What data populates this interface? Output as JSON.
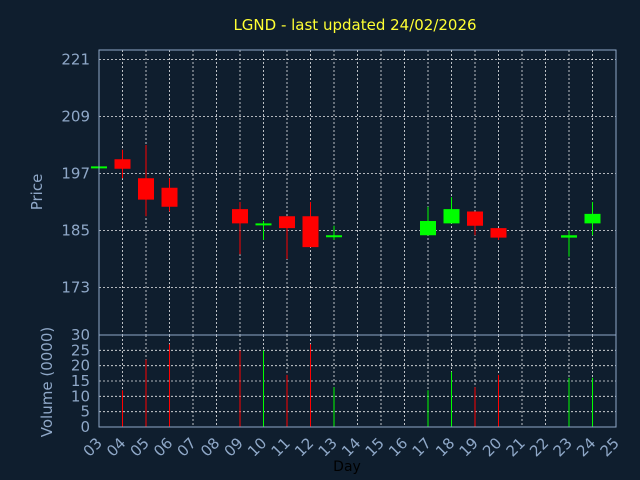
{
  "chart_data": {
    "type": "candlestick",
    "title": "LGND - last updated 24/02/2026",
    "price_axis": {
      "label": "Price",
      "ticks": [
        221,
        209,
        197,
        185,
        173
      ],
      "ylim": [
        163,
        223
      ]
    },
    "volume_axis": {
      "label": "Volume (0000)",
      "ticks": [
        0,
        5,
        10,
        15,
        20,
        25,
        30
      ],
      "ylim": [
        0,
        30
      ]
    },
    "x_axis": {
      "label": "Day",
      "ticks": [
        "03",
        "04",
        "05",
        "06",
        "07",
        "08",
        "09",
        "10",
        "11",
        "12",
        "13",
        "14",
        "15",
        "16",
        "17",
        "18",
        "19",
        "20",
        "21",
        "22",
        "23",
        "24",
        "25"
      ]
    },
    "colors": {
      "up": "#00ff00",
      "down": "#ff0000",
      "grid": "#ffffff",
      "axis": "#8fa8c8",
      "title": "#ffff33"
    },
    "candles": [
      {
        "day": 3,
        "open": 198.5,
        "high": 198.5,
        "low": 198.5,
        "close": 198.5,
        "volume": 0
      },
      {
        "day": 4,
        "open": 200.0,
        "high": 202.0,
        "low": 196.0,
        "close": 198.0,
        "volume": 12
      },
      {
        "day": 5,
        "open": 196.0,
        "high": 203.0,
        "low": 188.0,
        "close": 191.5,
        "volume": 22
      },
      {
        "day": 6,
        "open": 194.0,
        "high": 196.0,
        "low": 189.0,
        "close": 190.0,
        "volume": 27
      },
      {
        "day": 9,
        "open": 189.5,
        "high": 191.0,
        "low": 180.0,
        "close": 186.5,
        "volume": 25
      },
      {
        "day": 10,
        "open": 186.5,
        "high": 187.0,
        "low": 183.0,
        "close": 186.5,
        "volume": 25
      },
      {
        "day": 11,
        "open": 188.0,
        "high": 188.0,
        "low": 179.0,
        "close": 185.5,
        "volume": 17
      },
      {
        "day": 12,
        "open": 188.0,
        "high": 191.0,
        "low": 181.5,
        "close": 181.5,
        "volume": 27
      },
      {
        "day": 13,
        "open": 184.0,
        "high": 186.0,
        "low": 183.0,
        "close": 184.0,
        "volume": 13
      },
      {
        "day": 17,
        "open": 184.0,
        "high": 190.0,
        "low": 184.0,
        "close": 187.0,
        "volume": 12
      },
      {
        "day": 18,
        "open": 186.5,
        "high": 192.0,
        "low": 186.5,
        "close": 189.5,
        "volume": 18
      },
      {
        "day": 19,
        "open": 189.0,
        "high": 189.0,
        "low": 184.0,
        "close": 186.0,
        "volume": 13
      },
      {
        "day": 20,
        "open": 185.5,
        "high": 185.5,
        "low": 183.0,
        "close": 183.5,
        "volume": 17
      },
      {
        "day": 23,
        "open": 183.5,
        "high": 185.0,
        "low": 179.5,
        "close": 184.0,
        "volume": 16
      },
      {
        "day": 24,
        "open": 186.5,
        "high": 191.0,
        "low": 184.0,
        "close": 188.5,
        "volume": 16
      }
    ]
  }
}
